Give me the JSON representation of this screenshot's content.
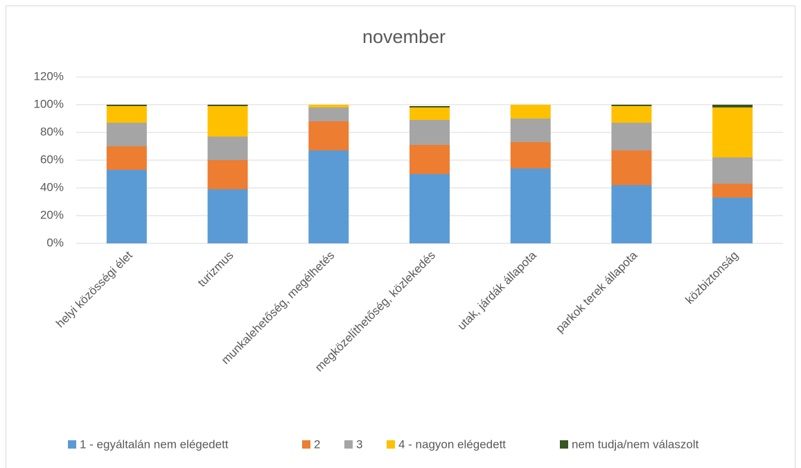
{
  "chart_data": {
    "type": "stacked_bar",
    "title": "november",
    "categories": [
      "helyi közösségi élet",
      "turizmus",
      "munkalehetőség, megélhetés",
      "megközelíthetőség, közlekedés",
      "utak, járdák állapota",
      "parkok terek állapota",
      "közbiztonság"
    ],
    "series": [
      {
        "name": "1 - egyáltalán nem elégedett",
        "color": "#5b9bd5",
        "values": [
          53,
          39,
          67,
          50,
          54,
          42,
          33
        ]
      },
      {
        "name": "2",
        "color": "#ed7d31",
        "values": [
          17,
          21,
          21,
          21,
          19,
          25,
          10
        ]
      },
      {
        "name": "3",
        "color": "#a5a5a5",
        "values": [
          17,
          17,
          10,
          18,
          17,
          20,
          19
        ]
      },
      {
        "name": "4 - nagyon elégedett",
        "color": "#ffc000",
        "values": [
          12,
          22,
          2,
          9,
          10,
          12,
          36
        ]
      },
      {
        "name": "nem tudja/nem válaszolt",
        "color": "#375623",
        "values": [
          1,
          1,
          0,
          1,
          0,
          1,
          2
        ]
      }
    ],
    "ylim": [
      0,
      120
    ],
    "yticks": [
      {
        "value": 0,
        "label": "0%"
      },
      {
        "value": 20,
        "label": "20%"
      },
      {
        "value": 40,
        "label": "40%"
      },
      {
        "value": 60,
        "label": "60%"
      },
      {
        "value": 80,
        "label": "80%"
      },
      {
        "value": 100,
        "label": "100%"
      },
      {
        "value": 120,
        "label": "120%"
      }
    ],
    "grid": true,
    "legend": "bottom"
  }
}
